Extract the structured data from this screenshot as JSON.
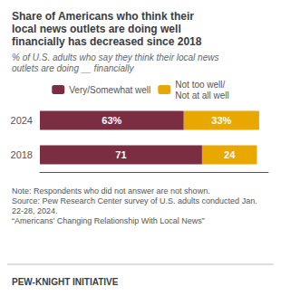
{
  "chart_data": {
    "type": "bar",
    "orientation": "horizontal",
    "stacked": true,
    "title": "Share of Americans who think their\nlocal news outlets are doing well\nfinancially has decreased since 2018",
    "subtitle": "% of U.S. adults who say they think their local news\noutlets are doing __ financially",
    "categories": [
      "2024",
      "2018"
    ],
    "series": [
      {
        "name": "Very/Somewhat well",
        "color": "#7B2D42",
        "values": [
          63,
          71
        ],
        "value_labels": [
          "63%",
          "71"
        ]
      },
      {
        "name": "Not too well/\nNot at all well",
        "color": "#E8A800",
        "values": [
          33,
          24
        ],
        "value_labels": [
          "33%",
          "24"
        ]
      }
    ],
    "xlim": [
      0,
      100
    ],
    "data_labels": true,
    "tick_labels": "y",
    "grid": false,
    "legend": "top",
    "annotations": [
      "Note: Respondents who did not answer are not shown.\nSource: Pew Research Center survey of U.S. adults conducted Jan.\n22-28, 2024.\n“Americans’ Changing Relationship With Local News”",
      "PEW-KNIGHT INITIATIVE"
    ]
  }
}
